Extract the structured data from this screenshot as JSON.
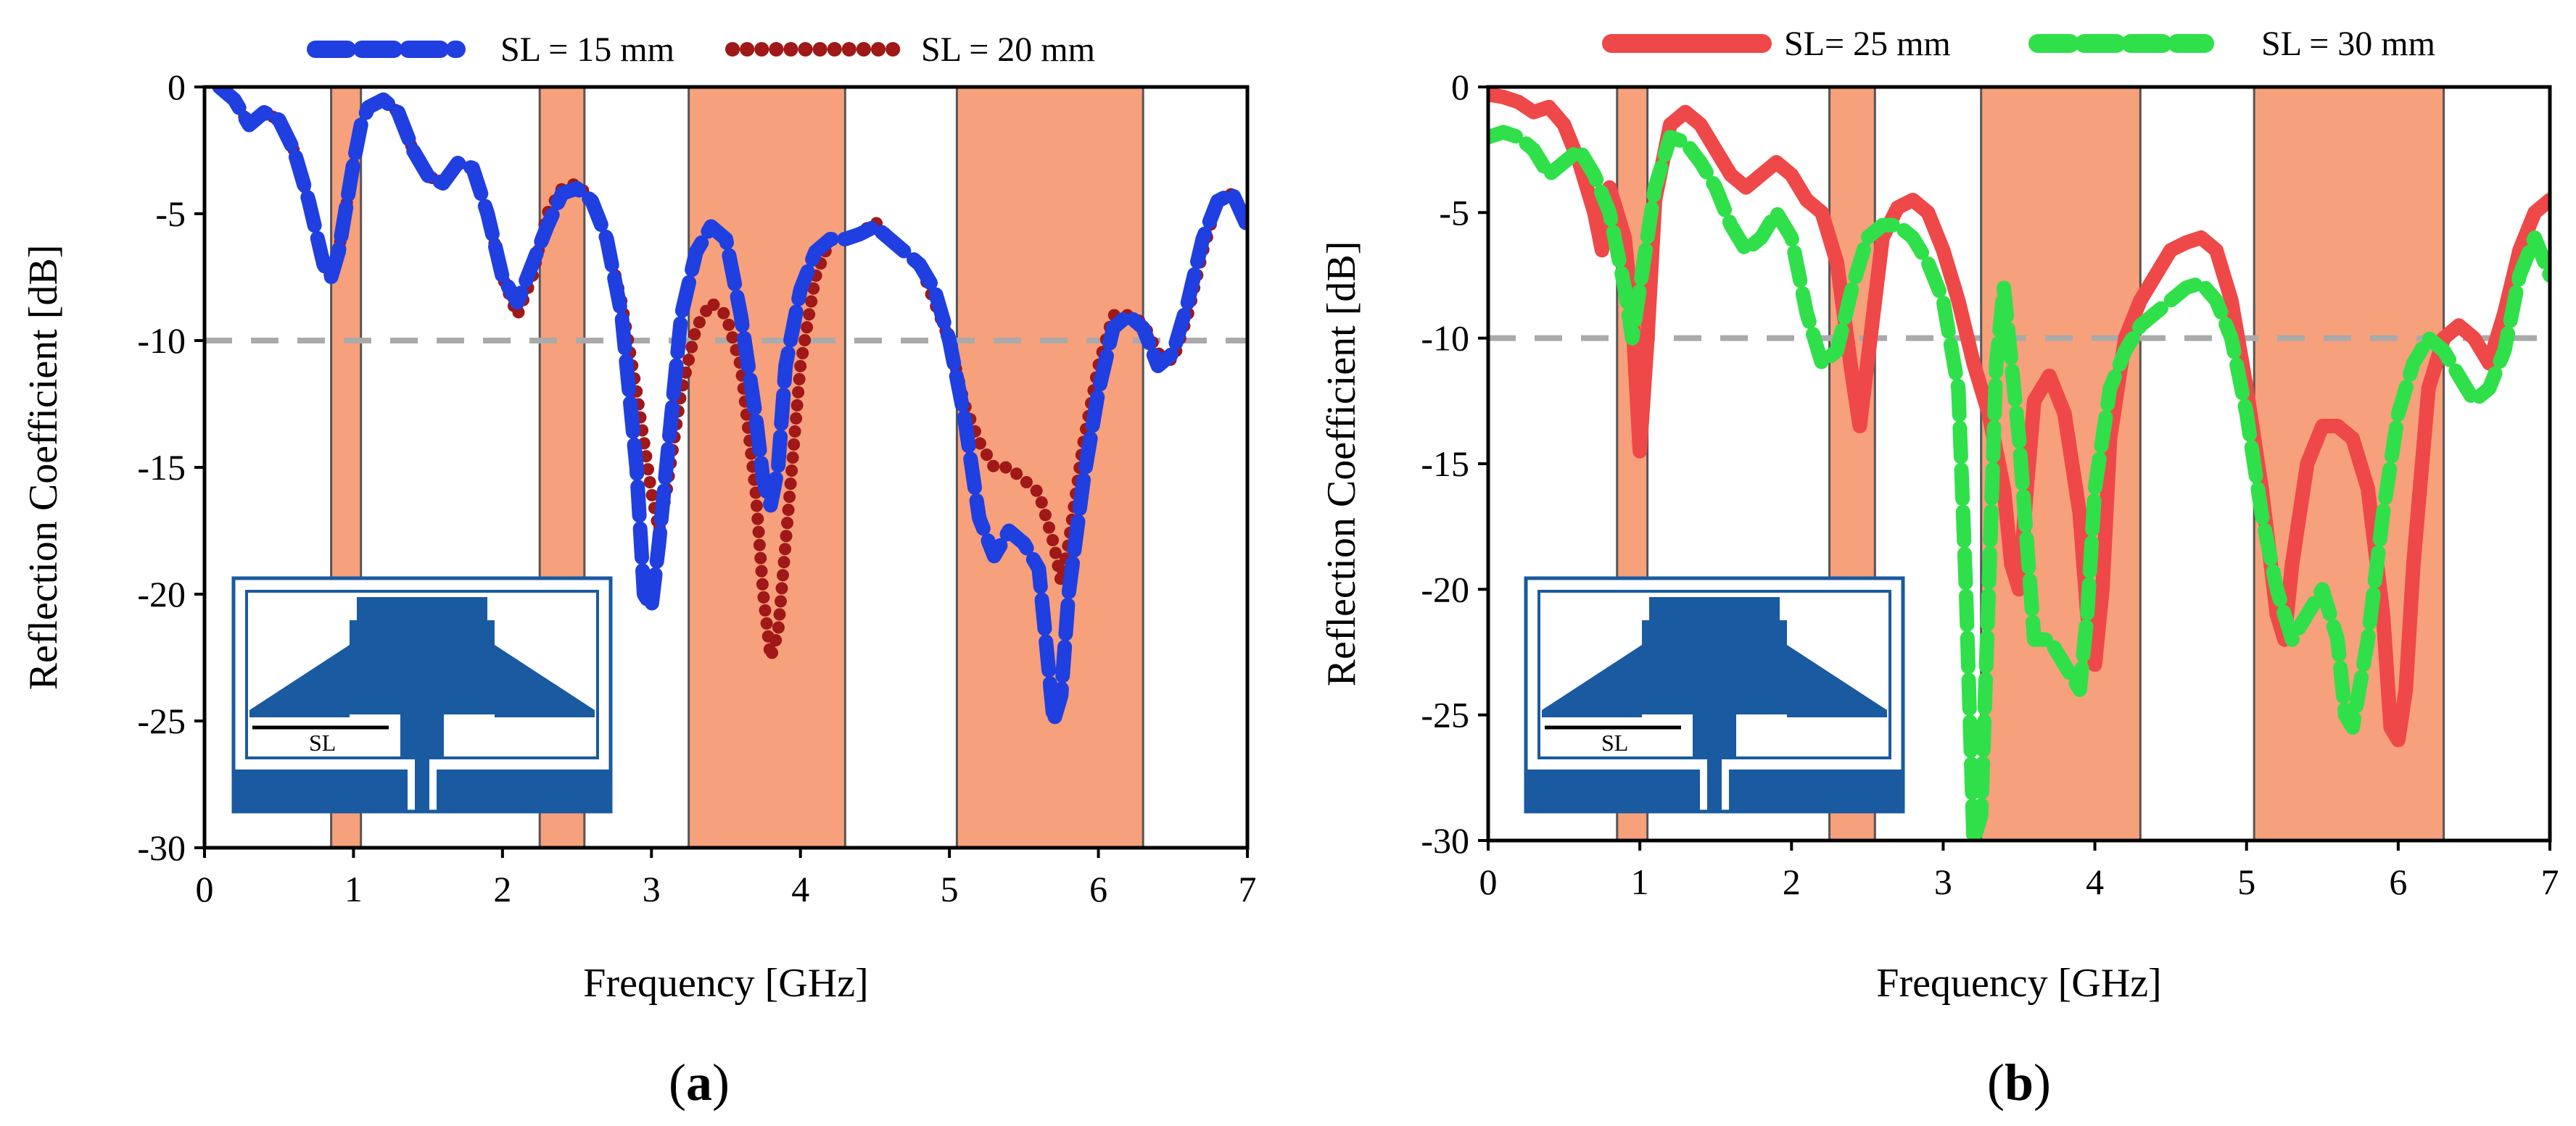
{
  "chart_data": [
    {
      "type": "line",
      "panel": "a",
      "label_open": "(",
      "label_letter": "a",
      "label_close": ")",
      "xlabel": "Frequency [GHz]",
      "ylabel": "Reflection Coefficient [dB]",
      "xlim": [
        0,
        7
      ],
      "ylim": [
        -30,
        0
      ],
      "xticks": [
        "0",
        "1",
        "2",
        "3",
        "4",
        "5",
        "6",
        "7"
      ],
      "yticks": [
        "0",
        "-5",
        "-10",
        "-15",
        "-20",
        "-25",
        "-30"
      ],
      "threshold": -10,
      "grid": false,
      "legend_position": "top",
      "bands": [
        [
          0.85,
          1.05
        ],
        [
          2.25,
          2.55
        ],
        [
          3.25,
          4.3
        ],
        [
          5.05,
          6.3
        ]
      ],
      "inset_label": "SL",
      "series": [
        {
          "name": "SL = 15 mm",
          "color": "#1f3fe0",
          "style": "dashed",
          "x": [
            0.1,
            0.2,
            0.3,
            0.4,
            0.5,
            0.6,
            0.7,
            0.8,
            0.85,
            0.9,
            1.0,
            1.05,
            1.1,
            1.2,
            1.3,
            1.4,
            1.5,
            1.6,
            1.7,
            1.8,
            1.9,
            2.0,
            2.1,
            2.2,
            2.3,
            2.4,
            2.5,
            2.6,
            2.7,
            2.8,
            2.9,
            2.95,
            3.0,
            3.05,
            3.1,
            3.15,
            3.2,
            3.3,
            3.4,
            3.5,
            3.6,
            3.7,
            3.75,
            3.8,
            3.85,
            3.9,
            4.0,
            4.1,
            4.2,
            4.3,
            4.4,
            4.5,
            4.6,
            4.7,
            4.8,
            4.9,
            5.0,
            5.1,
            5.2,
            5.3,
            5.4,
            5.5,
            5.6,
            5.65,
            5.7,
            5.75,
            5.8,
            5.9,
            6.0,
            6.1,
            6.2,
            6.3,
            6.4,
            6.5,
            6.6,
            6.7,
            6.8,
            6.9,
            7.0
          ],
          "y": [
            0,
            -0.5,
            -1.5,
            -1.0,
            -1.3,
            -2.5,
            -4.5,
            -7.0,
            -7.5,
            -6.5,
            -3.0,
            -1.5,
            -0.8,
            -0.5,
            -1.0,
            -2.5,
            -3.5,
            -3.8,
            -3.0,
            -3.2,
            -5.0,
            -7.5,
            -8.5,
            -7.0,
            -5.5,
            -4.2,
            -4.0,
            -4.5,
            -6.0,
            -9.0,
            -15.0,
            -20.0,
            -20.5,
            -18.0,
            -15.0,
            -12.0,
            -9.0,
            -6.5,
            -5.5,
            -6.0,
            -9.0,
            -13.0,
            -15.5,
            -16.5,
            -15.0,
            -11.0,
            -8.0,
            -6.5,
            -6.0,
            -6.0,
            -5.8,
            -5.5,
            -6.0,
            -6.5,
            -7.0,
            -8.0,
            -10.0,
            -13.0,
            -17.0,
            -18.5,
            -17.5,
            -18.0,
            -19.0,
            -22.0,
            -25.0,
            -24.0,
            -20.0,
            -15.5,
            -12.0,
            -9.5,
            -9.0,
            -9.5,
            -11.0,
            -10.5,
            -8.5,
            -6.0,
            -4.5,
            -4.2,
            -5.5
          ]
        },
        {
          "name": "SL = 20 mm",
          "color": "#a01818",
          "style": "dotted",
          "x": [
            0.1,
            0.2,
            0.3,
            0.4,
            0.5,
            0.6,
            0.7,
            0.8,
            0.85,
            0.9,
            1.0,
            1.05,
            1.1,
            1.2,
            1.3,
            1.4,
            1.5,
            1.6,
            1.7,
            1.8,
            1.9,
            2.0,
            2.1,
            2.2,
            2.3,
            2.4,
            2.5,
            2.6,
            2.7,
            2.8,
            2.9,
            3.0,
            3.05,
            3.1,
            3.2,
            3.3,
            3.4,
            3.5,
            3.6,
            3.7,
            3.75,
            3.8,
            3.85,
            3.9,
            4.0,
            4.1,
            4.2,
            4.3,
            4.4,
            4.5,
            4.6,
            4.7,
            4.8,
            4.9,
            5.0,
            5.1,
            5.2,
            5.3,
            5.4,
            5.5,
            5.6,
            5.7,
            5.75,
            5.8,
            5.9,
            6.0,
            6.1,
            6.2,
            6.3,
            6.4,
            6.5,
            6.6,
            6.7,
            6.8,
            6.9,
            7.0
          ],
          "y": [
            0,
            -0.5,
            -1.5,
            -1.0,
            -1.3,
            -2.5,
            -4.5,
            -7.0,
            -7.5,
            -6.5,
            -3.0,
            -1.5,
            -0.8,
            -0.5,
            -1.0,
            -2.5,
            -3.5,
            -3.8,
            -3.0,
            -3.2,
            -5.0,
            -7.5,
            -9.0,
            -7.5,
            -5.0,
            -4.0,
            -3.8,
            -4.5,
            -6.0,
            -8.5,
            -12.0,
            -16.0,
            -17.5,
            -16.0,
            -12.0,
            -9.5,
            -8.5,
            -9.0,
            -11.0,
            -16.0,
            -20.0,
            -22.5,
            -21.5,
            -18.0,
            -11.0,
            -7.5,
            -6.0,
            -6.0,
            -5.8,
            -5.3,
            -6.0,
            -6.5,
            -7.0,
            -8.5,
            -10.0,
            -12.5,
            -14.0,
            -15.0,
            -15.0,
            -15.5,
            -16.0,
            -18.0,
            -19.5,
            -18.0,
            -14.0,
            -11.0,
            -9.0,
            -9.0,
            -9.3,
            -10.5,
            -10.8,
            -9.0,
            -6.5,
            -4.5,
            -4.2,
            -5.5
          ]
        }
      ]
    },
    {
      "type": "line",
      "panel": "b",
      "label_open": "(",
      "label_letter": "b",
      "label_close": ")",
      "xlabel": "Frequency [GHz]",
      "ylabel": "Reflection Coefficient [dB]",
      "xlim": [
        0,
        7
      ],
      "ylim": [
        -30,
        0
      ],
      "xticks": [
        "0",
        "1",
        "2",
        "3",
        "4",
        "5",
        "6",
        "7"
      ],
      "yticks": [
        "0",
        "-5",
        "-10",
        "-15",
        "-20",
        "-25",
        "-30"
      ],
      "threshold": -10,
      "grid": false,
      "legend_position": "top",
      "bands": [
        [
          0.85,
          1.05
        ],
        [
          2.25,
          2.55
        ],
        [
          3.25,
          4.3
        ],
        [
          5.05,
          6.3
        ]
      ],
      "inset_label": "SL",
      "series": [
        {
          "name": "SL= 25 mm",
          "color": "#ef4848",
          "style": "solid",
          "x": [
            0.0,
            0.1,
            0.2,
            0.3,
            0.4,
            0.5,
            0.6,
            0.7,
            0.75,
            0.8,
            0.9,
            0.95,
            1.0,
            1.05,
            1.1,
            1.2,
            1.3,
            1.4,
            1.5,
            1.6,
            1.7,
            1.8,
            1.9,
            2.0,
            2.1,
            2.2,
            2.3,
            2.4,
            2.45,
            2.5,
            2.6,
            2.7,
            2.8,
            2.9,
            3.0,
            3.1,
            3.2,
            3.3,
            3.4,
            3.45,
            3.5,
            3.55,
            3.6,
            3.7,
            3.8,
            3.9,
            3.95,
            4.0,
            4.05,
            4.1,
            4.2,
            4.3,
            4.4,
            4.5,
            4.6,
            4.7,
            4.8,
            4.9,
            5.0,
            5.1,
            5.2,
            5.25,
            5.3,
            5.4,
            5.5,
            5.6,
            5.7,
            5.8,
            5.9,
            5.95,
            6.0,
            6.05,
            6.1,
            6.2,
            6.3,
            6.4,
            6.5,
            6.6,
            6.7,
            6.8,
            6.9,
            7.0
          ],
          "y": [
            -0.3,
            -0.4,
            -0.6,
            -1.0,
            -0.8,
            -1.5,
            -3.0,
            -5.0,
            -6.5,
            -4.0,
            -6.0,
            -9.0,
            -14.5,
            -10.0,
            -4.5,
            -1.5,
            -1.0,
            -1.5,
            -2.5,
            -3.5,
            -4.0,
            -3.5,
            -3.0,
            -3.5,
            -4.5,
            -5.0,
            -7.0,
            -11.5,
            -13.5,
            -11.0,
            -6.0,
            -4.8,
            -4.5,
            -5.0,
            -6.5,
            -8.5,
            -11.0,
            -13.0,
            -16.0,
            -19.0,
            -20.0,
            -16.0,
            -12.5,
            -11.5,
            -13.0,
            -17.0,
            -21.0,
            -23.0,
            -20.0,
            -14.0,
            -10.0,
            -8.5,
            -7.5,
            -6.5,
            -6.2,
            -6.0,
            -6.5,
            -8.5,
            -12.0,
            -16.0,
            -21.0,
            -22.0,
            -19.0,
            -15.0,
            -13.5,
            -13.5,
            -14.0,
            -16.0,
            -21.0,
            -25.5,
            -26.0,
            -24.0,
            -19.0,
            -12.0,
            -10.0,
            -9.5,
            -10.0,
            -11.0,
            -9.0,
            -6.5,
            -5.0,
            -4.5
          ]
        },
        {
          "name": "SL = 30 mm",
          "color": "#2fe04a",
          "style": "dashed",
          "x": [
            0.0,
            0.1,
            0.2,
            0.3,
            0.4,
            0.5,
            0.6,
            0.7,
            0.8,
            0.9,
            0.95,
            1.0,
            1.1,
            1.2,
            1.3,
            1.4,
            1.5,
            1.6,
            1.7,
            1.8,
            1.9,
            2.0,
            2.1,
            2.2,
            2.3,
            2.4,
            2.5,
            2.6,
            2.7,
            2.8,
            2.9,
            3.0,
            3.1,
            3.15,
            3.2,
            3.25,
            3.3,
            3.35,
            3.4,
            3.5,
            3.55,
            3.6,
            3.7,
            3.8,
            3.9,
            3.95,
            4.0,
            4.1,
            4.2,
            4.3,
            4.4,
            4.5,
            4.6,
            4.7,
            4.8,
            4.9,
            5.0,
            5.1,
            5.2,
            5.3,
            5.4,
            5.5,
            5.6,
            5.65,
            5.7,
            5.8,
            5.9,
            6.0,
            6.1,
            6.2,
            6.3,
            6.4,
            6.5,
            6.6,
            6.7,
            6.8,
            6.9,
            7.0
          ],
          "y": [
            -2.0,
            -1.8,
            -2.0,
            -2.5,
            -3.5,
            -3.0,
            -2.5,
            -3.5,
            -5.0,
            -8.0,
            -10.0,
            -8.0,
            -4.0,
            -2.0,
            -2.2,
            -3.0,
            -4.0,
            -5.5,
            -6.5,
            -6.0,
            -5.0,
            -6.0,
            -9.0,
            -11.0,
            -10.5,
            -8.0,
            -6.0,
            -5.5,
            -5.5,
            -6.0,
            -7.0,
            -8.5,
            -12.0,
            -20.0,
            -30.0,
            -29.0,
            -20.0,
            -11.0,
            -8.0,
            -14.0,
            -18.0,
            -22.0,
            -22.0,
            -23.0,
            -24.0,
            -21.0,
            -16.0,
            -12.0,
            -10.5,
            -9.5,
            -9.0,
            -8.5,
            -8.0,
            -7.8,
            -8.5,
            -10.0,
            -13.0,
            -17.0,
            -20.0,
            -22.0,
            -21.0,
            -20.0,
            -22.0,
            -25.0,
            -25.5,
            -22.0,
            -17.0,
            -13.0,
            -11.0,
            -10.0,
            -10.5,
            -11.5,
            -12.5,
            -12.0,
            -10.5,
            -7.5,
            -6.0,
            -7.5
          ]
        }
      ]
    }
  ]
}
